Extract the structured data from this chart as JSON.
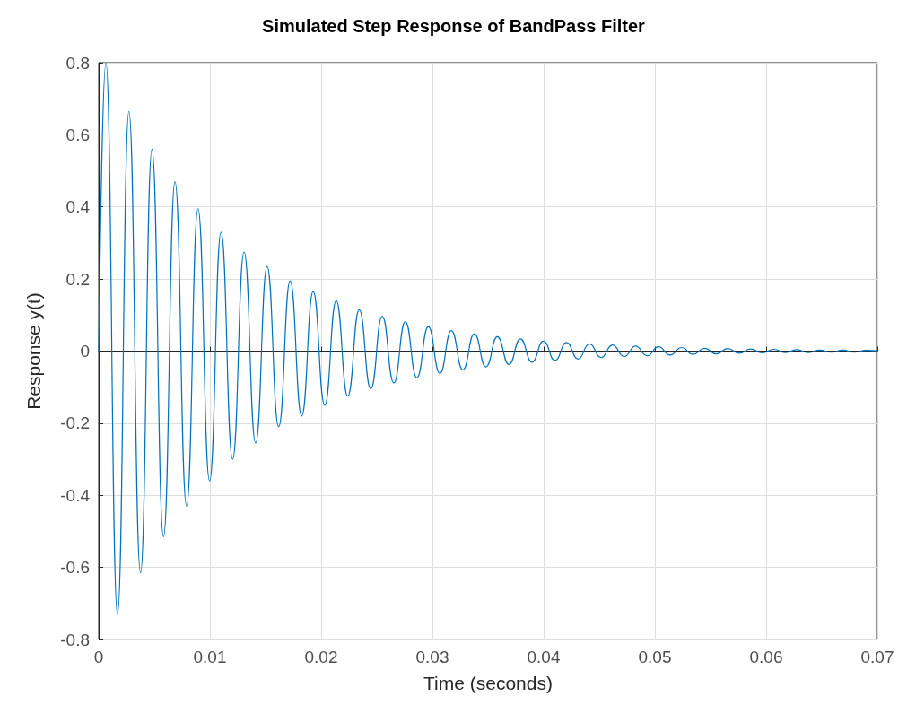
{
  "chart_data": {
    "type": "line",
    "title": "Simulated Step Response of BandPass Filter",
    "xlabel": "Time (seconds)",
    "ylabel": "Response y(t)",
    "x": [
      0,
      0.00065,
      0.00169,
      0.00272,
      0.00376,
      0.00479,
      0.00583,
      0.00686,
      0.0079,
      0.00893,
      0.00997,
      0.011,
      0.01204,
      0.01307,
      0.01411,
      0.01514,
      0.01618,
      0.01721,
      0.01825,
      0.01928,
      0.02032,
      0.02135,
      0.02239,
      0.02342,
      0.02446,
      0.02549,
      0.02653,
      0.02756,
      0.0286,
      0.02963,
      0.03067,
      0.0317,
      0.03274,
      0.03377,
      0.03481,
      0.03584,
      0.03688,
      0.03791,
      0.03895,
      0.03998,
      0.04102,
      0.04205,
      0.04309,
      0.04412,
      0.04516,
      0.04619,
      0.04723,
      0.04826,
      0.0493,
      0.05033,
      0.05137,
      0.0524,
      0.05344,
      0.05447,
      0.05551,
      0.05654,
      0.05758,
      0.05861,
      0.05965,
      0.06068,
      0.06172,
      0.06275,
      0.06379,
      0.06482,
      0.06586,
      0.06689,
      0.06793,
      0.06896,
      0.07
    ],
    "series": [
      {
        "color": "#0072bd",
        "values": [
          0,
          0.8,
          -0.73,
          0.665,
          -0.615,
          0.56,
          -0.515,
          0.47,
          -0.43,
          0.395,
          -0.36,
          0.33,
          -0.3,
          0.275,
          -0.255,
          0.235,
          -0.21,
          0.195,
          -0.18,
          0.165,
          -0.15,
          0.14,
          -0.125,
          0.115,
          -0.105,
          0.097,
          -0.088,
          0.082,
          -0.074,
          0.068,
          -0.062,
          0.057,
          -0.052,
          0.048,
          -0.044,
          0.04,
          -0.037,
          0.034,
          -0.031,
          0.028,
          -0.026,
          0.024,
          -0.022,
          0.02,
          -0.018,
          0.017,
          -0.015,
          0.014,
          -0.013,
          0.012,
          -0.011,
          0.01,
          -0.009,
          0.008,
          -0.008,
          0.007,
          -0.006,
          0.006,
          -0.005,
          0.005,
          -0.004,
          0.004,
          -0.004,
          0.003,
          -0.003,
          0.003,
          -0.003,
          0.002,
          0.001
        ]
      }
    ],
    "xlim": [
      0,
      0.07
    ],
    "xticks": [
      0,
      0.01,
      0.02,
      0.03,
      0.04,
      0.05,
      0.06,
      0.07
    ],
    "ylim": [
      -0.8,
      0.8
    ],
    "yticks": [
      -0.8,
      -0.6,
      -0.4,
      -0.2,
      0,
      0.2,
      0.4,
      0.6,
      0.8
    ],
    "grid": true,
    "line_style": "solid"
  }
}
